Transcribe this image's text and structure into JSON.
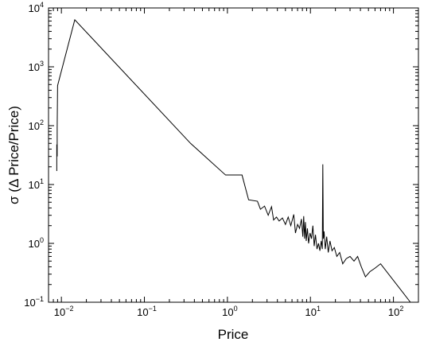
{
  "chart_data": {
    "type": "line",
    "title": "",
    "xlabel": "Price",
    "ylabel": "σ (Δ Price/Price)",
    "x_scale": "log",
    "y_scale": "log",
    "xlim": [
      0.007,
      200
    ],
    "ylim": [
      0.1,
      10000
    ],
    "x_ticks": [
      {
        "base": "10",
        "exp": "−2",
        "value": 0.01
      },
      {
        "base": "10",
        "exp": "−1",
        "value": 0.1
      },
      {
        "base": "10",
        "exp": "0",
        "value": 1
      },
      {
        "base": "10",
        "exp": "1",
        "value": 10
      },
      {
        "base": "10",
        "exp": "2",
        "value": 100
      }
    ],
    "y_ticks": [
      {
        "base": "10",
        "exp": "−1",
        "value": 0.1
      },
      {
        "base": "10",
        "exp": "0",
        "value": 1
      },
      {
        "base": "10",
        "exp": "1",
        "value": 10
      },
      {
        "base": "10",
        "exp": "2",
        "value": 100
      },
      {
        "base": "10",
        "exp": "3",
        "value": 1000
      },
      {
        "base": "10",
        "exp": "4",
        "value": 10000
      }
    ],
    "grid": false,
    "legend": "none",
    "line_color": "#000000",
    "series": [
      {
        "x": [
          0.0088,
          0.0088,
          0.0089,
          0.0089,
          0.009,
          0.0145,
          0.36,
          0.95,
          1.5,
          1.8,
          2.3,
          2.5,
          2.8,
          3.1,
          3.4,
          3.6,
          3.9,
          4.2,
          4.6,
          5.0,
          5.4,
          5.8,
          6.3,
          6.6,
          7.0,
          7.4,
          7.8,
          8.1,
          8.3,
          8.5,
          8.7,
          8.9,
          9.2,
          9.5,
          9.9,
          10.3,
          10.7,
          11.1,
          11.5,
          12.0,
          12.5,
          13.0,
          13.5,
          13.9,
          14.1,
          14.3,
          14.6,
          15.1,
          15.7,
          16.4,
          17.2,
          18.2,
          19.4,
          20.8,
          22.5,
          24.5,
          27.0,
          30.0,
          33.5,
          37.0,
          41.0,
          46.0,
          52.0,
          60.0,
          70.0,
          160.0
        ],
        "y": [
          17,
          48,
          30,
          95,
          480,
          6300,
          50,
          14.5,
          14.5,
          5.5,
          5.2,
          3.8,
          4.3,
          3.0,
          4.2,
          2.5,
          2.8,
          2.4,
          2.7,
          2.1,
          2.8,
          2.0,
          3.1,
          1.5,
          2.1,
          1.8,
          2.6,
          1.3,
          2.9,
          1.2,
          2.3,
          1.1,
          1.8,
          1.0,
          1.5,
          1.2,
          2.0,
          0.9,
          1.4,
          0.8,
          1.0,
          0.75,
          1.1,
          0.8,
          22,
          1.2,
          1.6,
          0.8,
          1.3,
          0.7,
          1.1,
          0.75,
          0.85,
          0.6,
          0.7,
          0.45,
          0.55,
          0.6,
          0.5,
          0.6,
          0.4,
          0.27,
          0.33,
          0.38,
          0.45,
          0.1
        ]
      }
    ]
  }
}
